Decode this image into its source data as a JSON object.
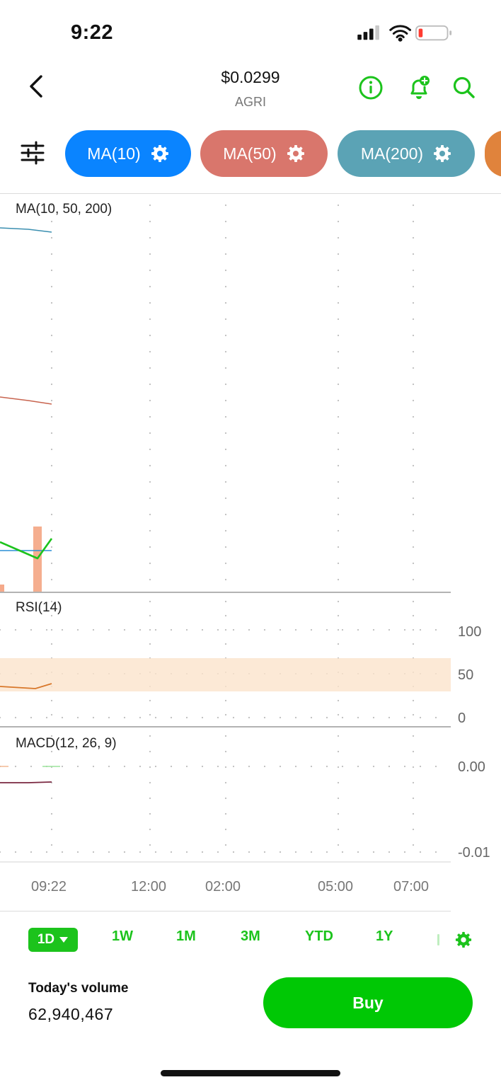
{
  "status_bar": {
    "time": "9:22"
  },
  "header": {
    "price": "$0.0299",
    "ticker": "AGRI"
  },
  "indicators": [
    {
      "label": "MA(10)",
      "color": "#0a84ff"
    },
    {
      "label": "MA(50)",
      "color": "#d9766c"
    },
    {
      "label": "MA(200)",
      "color": "#5ba3b5"
    }
  ],
  "panels": {
    "ma": {
      "label": "MA(10, 50, 200)"
    },
    "rsi": {
      "label": "RSI(14)",
      "axis": [
        "100",
        "50",
        "0"
      ]
    },
    "macd": {
      "label": "MACD(12, 26, 9)",
      "axis": [
        "0.00",
        "-0.01"
      ]
    }
  },
  "x_axis": [
    "09:22",
    "12:00",
    "02:00",
    "05:00",
    "07:00"
  ],
  "timeframes": {
    "active": "1D",
    "items": [
      "1W",
      "1M",
      "3M",
      "YTD",
      "1Y"
    ]
  },
  "volume": {
    "title": "Today's volume",
    "value": "62,940,467"
  },
  "buy_label": "Buy",
  "colors": {
    "accent_green": "#00c805",
    "rsi_band": "#f6cfa8"
  }
}
